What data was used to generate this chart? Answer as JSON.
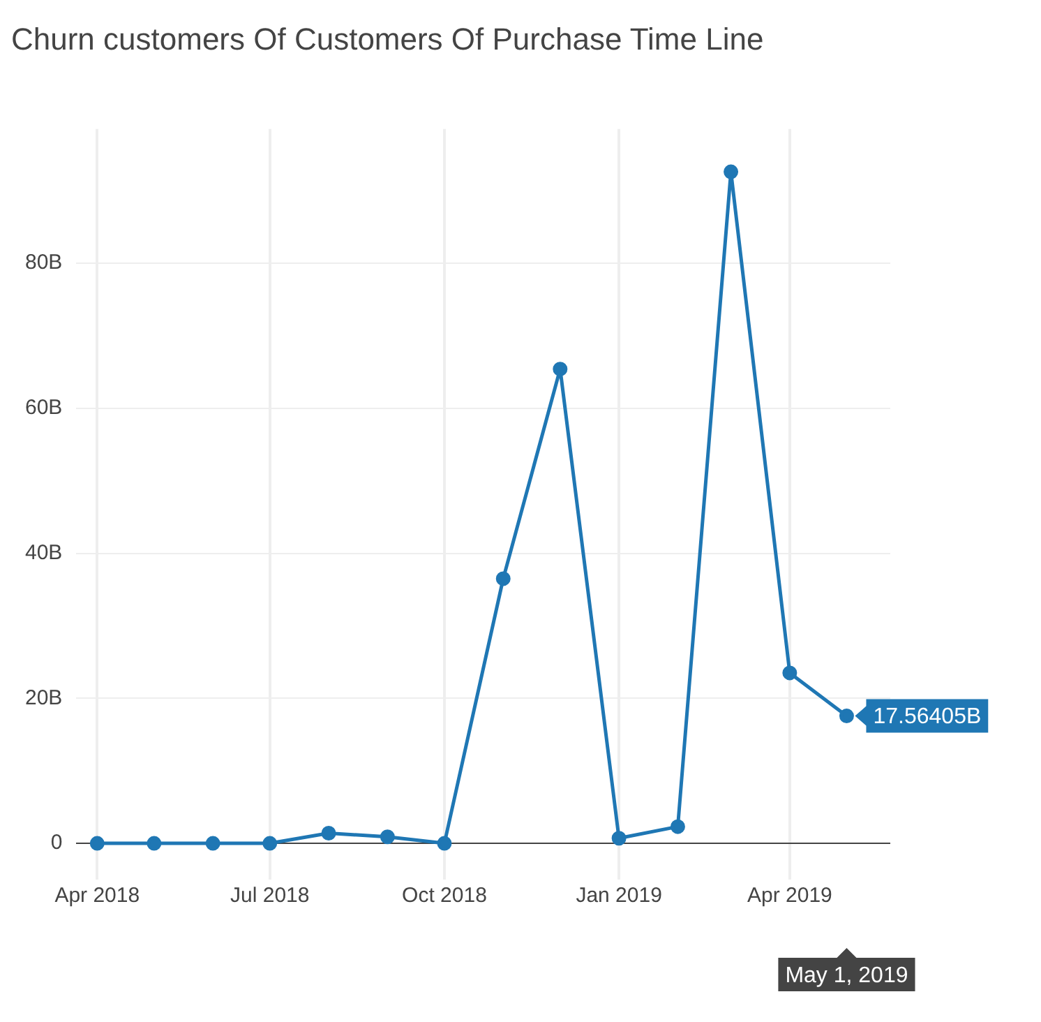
{
  "chart_data": {
    "type": "line",
    "title": "Churn customers Of Customers Of Purchase Time Line",
    "x": [
      "2018-04-01",
      "2018-05-01",
      "2018-06-01",
      "2018-07-01",
      "2018-08-01",
      "2018-09-01",
      "2018-10-01",
      "2018-11-01",
      "2018-12-01",
      "2019-01-01",
      "2019-02-01",
      "2019-03-01",
      "2019-04-01",
      "2019-05-01"
    ],
    "series": [
      {
        "color": "#1f77b4",
        "values": [
          0,
          0,
          0,
          0,
          1.4,
          0.9,
          0,
          36.5,
          65.4,
          0.7,
          2.3,
          92.6,
          23.5,
          17.56405
        ]
      }
    ],
    "xlim": [
      "2018-03-21",
      "2019-05-24"
    ],
    "xticks": [
      {
        "value": "2018-04-01",
        "label": "Apr 2018"
      },
      {
        "value": "2018-07-01",
        "label": "Jul 2018"
      },
      {
        "value": "2018-10-01",
        "label": "Oct 2018"
      },
      {
        "value": "2019-01-01",
        "label": "Jan 2019"
      },
      {
        "value": "2019-04-01",
        "label": "Apr 2019"
      }
    ],
    "ylim": [
      -5,
      98.5
    ],
    "yticks": [
      0,
      {
        "value": 20,
        "label": "20B"
      },
      {
        "value": 40,
        "label": "40B"
      },
      {
        "value": 60,
        "label": "60B"
      },
      {
        "value": 80,
        "label": "80B"
      }
    ],
    "grid": true,
    "legend": false,
    "marker": "circle",
    "line_style": "solid",
    "annotations": [
      {
        "text": "17.56405B",
        "x": "2019-05-01",
        "y": 17.56405
      },
      "May 1, 2019"
    ]
  }
}
